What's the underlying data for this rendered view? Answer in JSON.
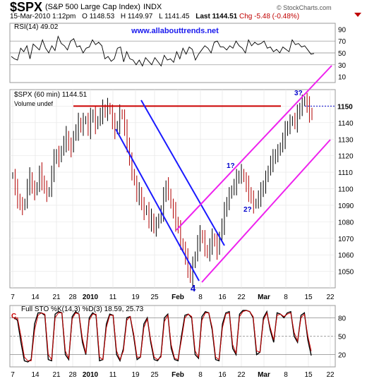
{
  "header": {
    "symbol": "$SPX",
    "name": "(S&P 500 Large Cap Index)",
    "exchange": "INDX",
    "credit": "© StockCharts.com",
    "datetime": "15-Mar-2010 1:12pm",
    "open": "O 1148.53",
    "high": "H 1149.97",
    "low": "L 1141.45",
    "last": "Last 1144.51",
    "chg": "Chg -5.48 (-0.48%)",
    "down_arrow_color": "#c00000"
  },
  "chart_data": [
    {
      "type": "line",
      "panel": "RSI",
      "label": "RSI(14) 49.02",
      "watermark": "www.allabouttrends.net",
      "yticks": [
        90,
        70,
        50,
        30,
        10
      ],
      "ylim": [
        0,
        100
      ],
      "reference_lines": [
        70,
        50,
        30
      ],
      "series": [
        {
          "values": [
            44,
            40,
            38,
            58,
            52,
            62,
            40,
            65,
            60,
            55,
            72,
            58,
            50,
            62,
            54,
            78,
            66,
            62,
            55,
            70,
            74,
            60,
            62,
            50,
            58,
            60,
            72,
            64,
            68,
            62,
            40,
            44,
            36,
            40,
            58,
            60,
            35,
            52,
            40,
            38,
            30,
            38,
            28,
            42,
            36,
            30,
            42,
            35,
            28,
            46,
            38,
            40,
            34,
            52,
            40,
            58,
            48,
            60,
            56,
            38,
            48,
            55,
            62,
            58,
            50,
            68,
            70,
            60,
            60,
            55,
            62,
            58,
            70,
            62,
            58,
            50,
            72,
            62,
            68,
            64,
            66,
            70,
            58,
            60,
            52,
            56,
            50,
            60,
            56,
            52,
            72,
            64,
            66,
            60,
            62,
            55,
            48,
            49.02
          ],
          "color": "#000000"
        }
      ]
    },
    {
      "type": "bar",
      "subtype": "ohlc",
      "panel": "price",
      "label": "$SPX (60 min) 1144.51",
      "sublabel": "Volume undef",
      "last_value": 1144.51,
      "ylim": [
        1040,
        1160
      ],
      "yticks": [
        1150,
        1140,
        1130,
        1120,
        1110,
        1100,
        1090,
        1080,
        1070,
        1060,
        1050
      ],
      "x_tick_labels": [
        "7",
        "14",
        "21",
        "28",
        "2010",
        "11",
        "19",
        "25",
        "Feb",
        "8",
        "16",
        "22",
        "Mar",
        "8",
        "15",
        "22"
      ],
      "series": [
        {
          "name": "$SPX",
          "values": [
            1108,
            1100,
            1094,
            1090,
            1089,
            1092,
            1102,
            1107,
            1100,
            1098,
            1102,
            1110,
            1105,
            1100,
            1097,
            1099,
            1110,
            1118,
            1121,
            1118,
            1124,
            1128,
            1132,
            1126,
            1124,
            1133,
            1135,
            1140,
            1137,
            1141,
            1142,
            1136,
            1143,
            1145,
            1138,
            1142,
            1145,
            1148,
            1146,
            1150,
            1147,
            1140,
            1136,
            1138,
            1146,
            1144,
            1136,
            1128,
            1117,
            1110,
            1104,
            1096,
            1098,
            1090,
            1086,
            1088,
            1080,
            1082,
            1076,
            1078,
            1083,
            1086,
            1095,
            1102,
            1098,
            1090,
            1086,
            1080,
            1076,
            1068,
            1064,
            1058,
            1052,
            1046,
            1054,
            1060,
            1068,
            1072,
            1070,
            1064,
            1060,
            1066,
            1070,
            1068,
            1062,
            1072,
            1078,
            1086,
            1092,
            1096,
            1100,
            1102,
            1106,
            1108,
            1110,
            1106,
            1102,
            1098,
            1094,
            1090,
            1092,
            1095,
            1098,
            1102,
            1106,
            1112,
            1116,
            1118,
            1121,
            1122,
            1126,
            1130,
            1135,
            1138,
            1140,
            1142,
            1140,
            1145,
            1149,
            1152,
            1154,
            1150,
            1146,
            1144.51
          ]
        }
      ],
      "annotations": [
        {
          "text": "3?",
          "kind": "wave-label"
        },
        {
          "text": "1?",
          "kind": "wave-label"
        },
        {
          "text": "2?",
          "kind": "wave-label"
        },
        {
          "text": "4",
          "kind": "wave-label"
        }
      ],
      "trendlines": [
        {
          "name": "resistance",
          "color": "#cc0000",
          "y": 1150
        },
        {
          "name": "last-price",
          "color": "#0000cc",
          "y": 1150,
          "style": "dotted"
        },
        {
          "name": "blue-channel",
          "color": "#1a1aff"
        },
        {
          "name": "magenta-channel",
          "color": "#ee22ee"
        }
      ]
    },
    {
      "type": "line",
      "panel": "STO",
      "label": "Full STO %K(14,3) %D(3) 18.59, 25.73",
      "label_d_color": "#cc0000",
      "label_k_color": "#000000",
      "k_value": "18.59",
      "d_value": "25.73",
      "corner_label": "C",
      "yticks": [
        80,
        50,
        20
      ],
      "ylim": [
        0,
        100
      ],
      "reference_lines": [
        80,
        50,
        20
      ],
      "series": [
        {
          "name": "%K",
          "color": "#000000",
          "values": [
            80,
            76,
            40,
            10,
            8,
            12,
            70,
            88,
            88,
            84,
            12,
            10,
            86,
            90,
            88,
            20,
            12,
            82,
            90,
            86,
            40,
            20,
            80,
            88,
            84,
            10,
            12,
            70,
            86,
            84,
            20,
            10,
            30,
            80,
            82,
            50,
            12,
            16,
            70,
            80,
            40,
            12,
            10,
            18,
            80,
            86,
            30,
            12,
            10,
            50,
            84,
            86,
            80,
            20,
            14,
            82,
            90,
            88,
            60,
            12,
            10,
            70,
            88,
            90,
            30,
            20,
            86,
            92,
            92,
            90,
            80,
            20,
            24,
            80,
            90,
            60,
            40,
            88,
            86,
            80,
            88,
            90,
            50,
            40,
            84,
            88,
            44,
            18.59
          ]
        },
        {
          "name": "%D",
          "color": "#cc0000",
          "values": [
            78,
            80,
            50,
            16,
            10,
            10,
            60,
            84,
            88,
            86,
            20,
            12,
            80,
            88,
            88,
            26,
            14,
            78,
            88,
            86,
            46,
            22,
            76,
            86,
            86,
            16,
            12,
            64,
            84,
            84,
            26,
            12,
            26,
            76,
            82,
            54,
            16,
            16,
            64,
            78,
            44,
            16,
            12,
            16,
            74,
            84,
            36,
            14,
            12,
            44,
            80,
            86,
            82,
            26,
            16,
            76,
            88,
            88,
            64,
            16,
            12,
            64,
            86,
            88,
            36,
            22,
            82,
            90,
            92,
            90,
            82,
            26,
            24,
            76,
            88,
            64,
            44,
            84,
            86,
            82,
            86,
            88,
            56,
            42,
            80,
            86,
            50,
            25.73
          ]
        }
      ],
      "x_tick_labels": [
        "7",
        "14",
        "21",
        "28",
        "2010",
        "11",
        "19",
        "25",
        "Feb",
        "8",
        "16",
        "22",
        "Mar",
        "8",
        "15",
        "22"
      ]
    }
  ]
}
